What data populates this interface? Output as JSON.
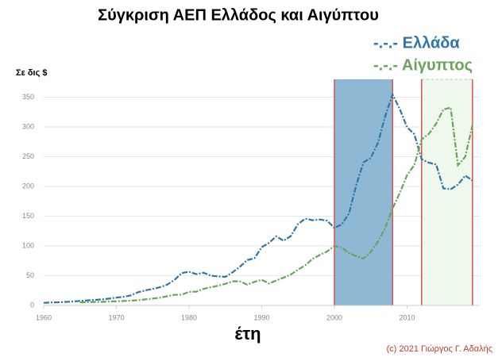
{
  "chart_data": {
    "type": "line",
    "title": "Σύγκριση ΑΕΠ Ελλάδος και Αιγύπτου",
    "y_label": "Σε δις $",
    "x_label": "έτη",
    "credit": "(c) 2021 Γιώργος Γ. Αδαλής",
    "x": [
      1960,
      1961,
      1962,
      1963,
      1964,
      1965,
      1966,
      1967,
      1968,
      1969,
      1970,
      1971,
      1972,
      1973,
      1974,
      1975,
      1976,
      1977,
      1978,
      1979,
      1980,
      1981,
      1982,
      1983,
      1984,
      1985,
      1986,
      1987,
      1988,
      1989,
      1990,
      1991,
      1992,
      1993,
      1994,
      1995,
      1996,
      1997,
      1998,
      1999,
      2000,
      2001,
      2002,
      2003,
      2004,
      2005,
      2006,
      2007,
      2008,
      2009,
      2010,
      2011,
      2012,
      2013,
      2014,
      2015,
      2016,
      2017,
      2018,
      2019
    ],
    "series": [
      {
        "name": "-.-.- Ελλάδα",
        "color": "#2e75a8",
        "values": [
          4.3,
          5.0,
          5.3,
          5.9,
          6.6,
          7.6,
          8.5,
          9.3,
          10.1,
          11.5,
          13.1,
          14.5,
          16.9,
          22.3,
          25.3,
          27.8,
          30.6,
          35.0,
          43.0,
          54.3,
          56.7,
          52.6,
          54.9,
          50.0,
          48.8,
          48.0,
          55.8,
          65.0,
          76.3,
          79.2,
          97.9,
          105.1,
          116.2,
          108.7,
          116.6,
          136.9,
          145.9,
          143.2,
          144.4,
          142.5,
          130.1,
          136.2,
          154.0,
          201.9,
          240.5,
          247.8,
          273.5,
          318.5,
          354.5,
          330.0,
          299.4,
          287.8,
          245.7,
          239.9,
          237.0,
          196.7,
          195.3,
          203.1,
          218.2,
          209.9
        ]
      },
      {
        "name": "-.-.- Αίγυπτος",
        "color": "#6aa35a",
        "values": [
          null,
          null,
          null,
          null,
          null,
          5.1,
          5.6,
          5.8,
          6.0,
          6.6,
          7.0,
          7.5,
          8.0,
          8.8,
          10.2,
          11.5,
          12.9,
          15.5,
          17.9,
          18.0,
          22.9,
          23.1,
          27.8,
          30.5,
          33.2,
          36.4,
          40.5,
          40.5,
          35.0,
          39.6,
          43.1,
          36.9,
          41.9,
          46.6,
          51.9,
          60.2,
          67.6,
          78.4,
          84.8,
          90.7,
          99.8,
          97.6,
          87.9,
          82.9,
          78.8,
          89.7,
          107.5,
          130.5,
          162.8,
          189.1,
          219.0,
          236.0,
          279.1,
          288.4,
          305.6,
          329.4,
          332.4,
          235.7,
          249.7,
          303.1
        ]
      }
    ],
    "highlights": [
      {
        "x": [
          2000,
          2008
        ],
        "color": "#8fb8d4"
      },
      {
        "x": [
          2012,
          2019
        ],
        "color": "#eef8ec"
      }
    ],
    "xlim": [
      1960,
      2020
    ],
    "xticks": [
      1960,
      1970,
      1980,
      1990,
      2000,
      2010
    ],
    "ylim": [
      0,
      380
    ],
    "yticks": [
      0,
      50,
      100,
      150,
      200,
      250,
      300,
      350
    ],
    "grid": true
  }
}
